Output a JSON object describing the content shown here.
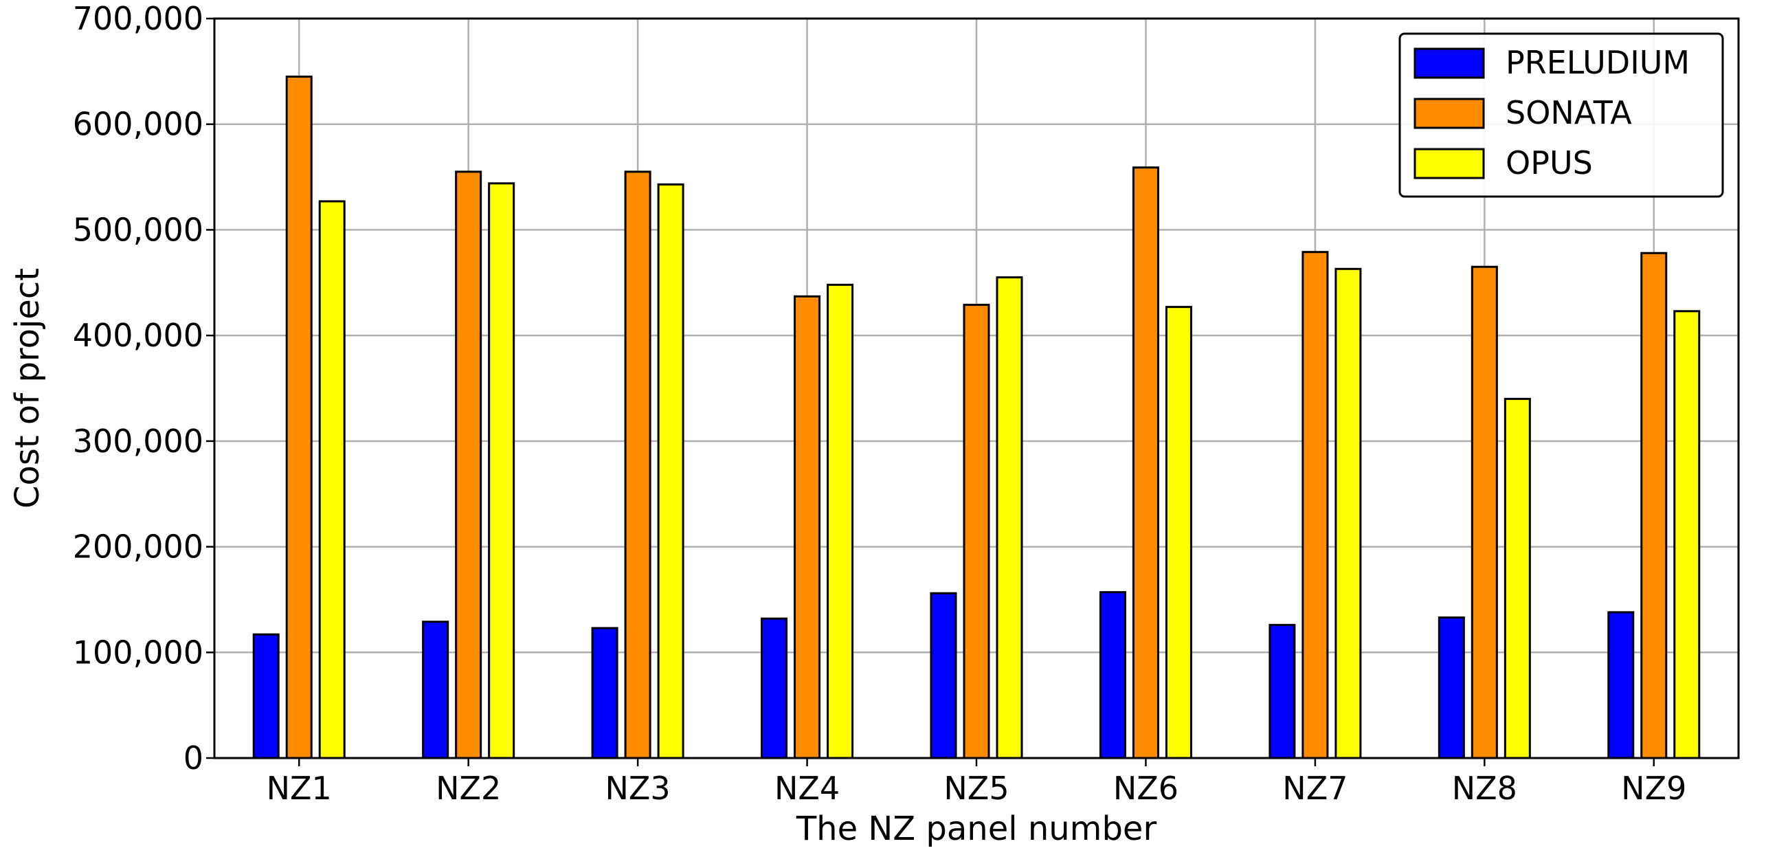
{
  "chart_data": {
    "type": "bar",
    "title": "",
    "xlabel": "The NZ panel number",
    "ylabel": "Cost of project",
    "categories": [
      "NZ1",
      "NZ2",
      "NZ3",
      "NZ4",
      "NZ5",
      "NZ6",
      "NZ7",
      "NZ8",
      "NZ9"
    ],
    "series": [
      {
        "name": "PRELUDIUM",
        "color": "#0000ff",
        "values": [
          117000,
          129000,
          123000,
          132000,
          156000,
          157000,
          126000,
          133000,
          138000
        ]
      },
      {
        "name": "SONATA",
        "color": "#ff8c00",
        "values": [
          645000,
          555000,
          555000,
          437000,
          429000,
          559000,
          479000,
          465000,
          478000
        ]
      },
      {
        "name": "OPUS",
        "color": "#ffff00",
        "values": [
          527000,
          544000,
          543000,
          448000,
          455000,
          427000,
          463000,
          340000,
          423000
        ]
      }
    ],
    "ylim": [
      0,
      700000
    ],
    "yticks": [
      0,
      100000,
      200000,
      300000,
      400000,
      500000,
      600000,
      700000
    ],
    "ytick_labels": [
      "0",
      "100,000",
      "200,000",
      "300,000",
      "400,000",
      "500,000",
      "600,000",
      "700,000"
    ],
    "grid": true,
    "legend_position": "top-right"
  }
}
